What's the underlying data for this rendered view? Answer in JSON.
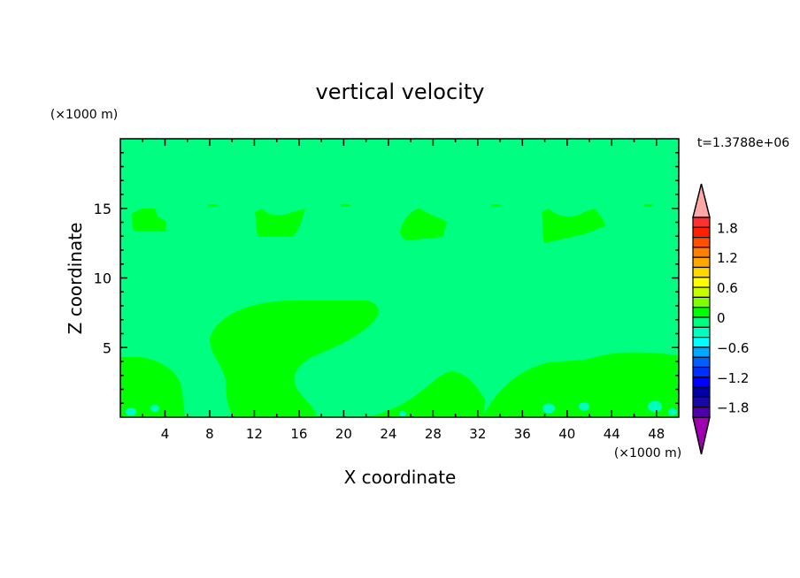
{
  "chart_data": {
    "type": "heatmap",
    "title": "vertical velocity",
    "xlabel": "X coordinate",
    "ylabel": "Z coordinate",
    "x_unit": "(×1000 m)",
    "y_unit": "(×1000 m)",
    "time_label": "t=1.3788e+06",
    "xlim": [
      0,
      50
    ],
    "ylim": [
      0,
      20
    ],
    "x_ticks": [
      4,
      8,
      12,
      16,
      20,
      24,
      28,
      32,
      36,
      40,
      44,
      48
    ],
    "y_ticks": [
      5,
      10,
      15
    ],
    "background_level": "-0.2 to 0",
    "colorbar": {
      "levels": [
        -2.0,
        -1.8,
        -1.6,
        -1.4,
        -1.2,
        -1.0,
        -0.8,
        -0.6,
        -0.4,
        -0.2,
        0,
        0.2,
        0.4,
        0.6,
        0.8,
        1.0,
        1.2,
        1.4,
        1.6,
        1.8,
        2.0
      ],
      "tick_labels": [
        "1.8",
        "1.2",
        "0.6",
        "0",
        "−0.6",
        "−1.2",
        "−1.8"
      ],
      "tick_values": [
        1.8,
        1.2,
        0.6,
        0,
        -0.6,
        -1.2,
        -1.8
      ],
      "colors_top_to_bottom": [
        "#ff3030",
        "#ff2000",
        "#ff5000",
        "#ff8000",
        "#ffa800",
        "#ffd800",
        "#ffff00",
        "#c8ff00",
        "#80ff00",
        "#00ff00",
        "#00ff80",
        "#00ffc0",
        "#00ffff",
        "#00a8ff",
        "#0060ff",
        "#0030ff",
        "#0000ff",
        "#0000a8",
        "#1808a8",
        "#5000a8"
      ],
      "over_color": "#ffa8a8",
      "under_color": "#a000b0"
    }
  }
}
